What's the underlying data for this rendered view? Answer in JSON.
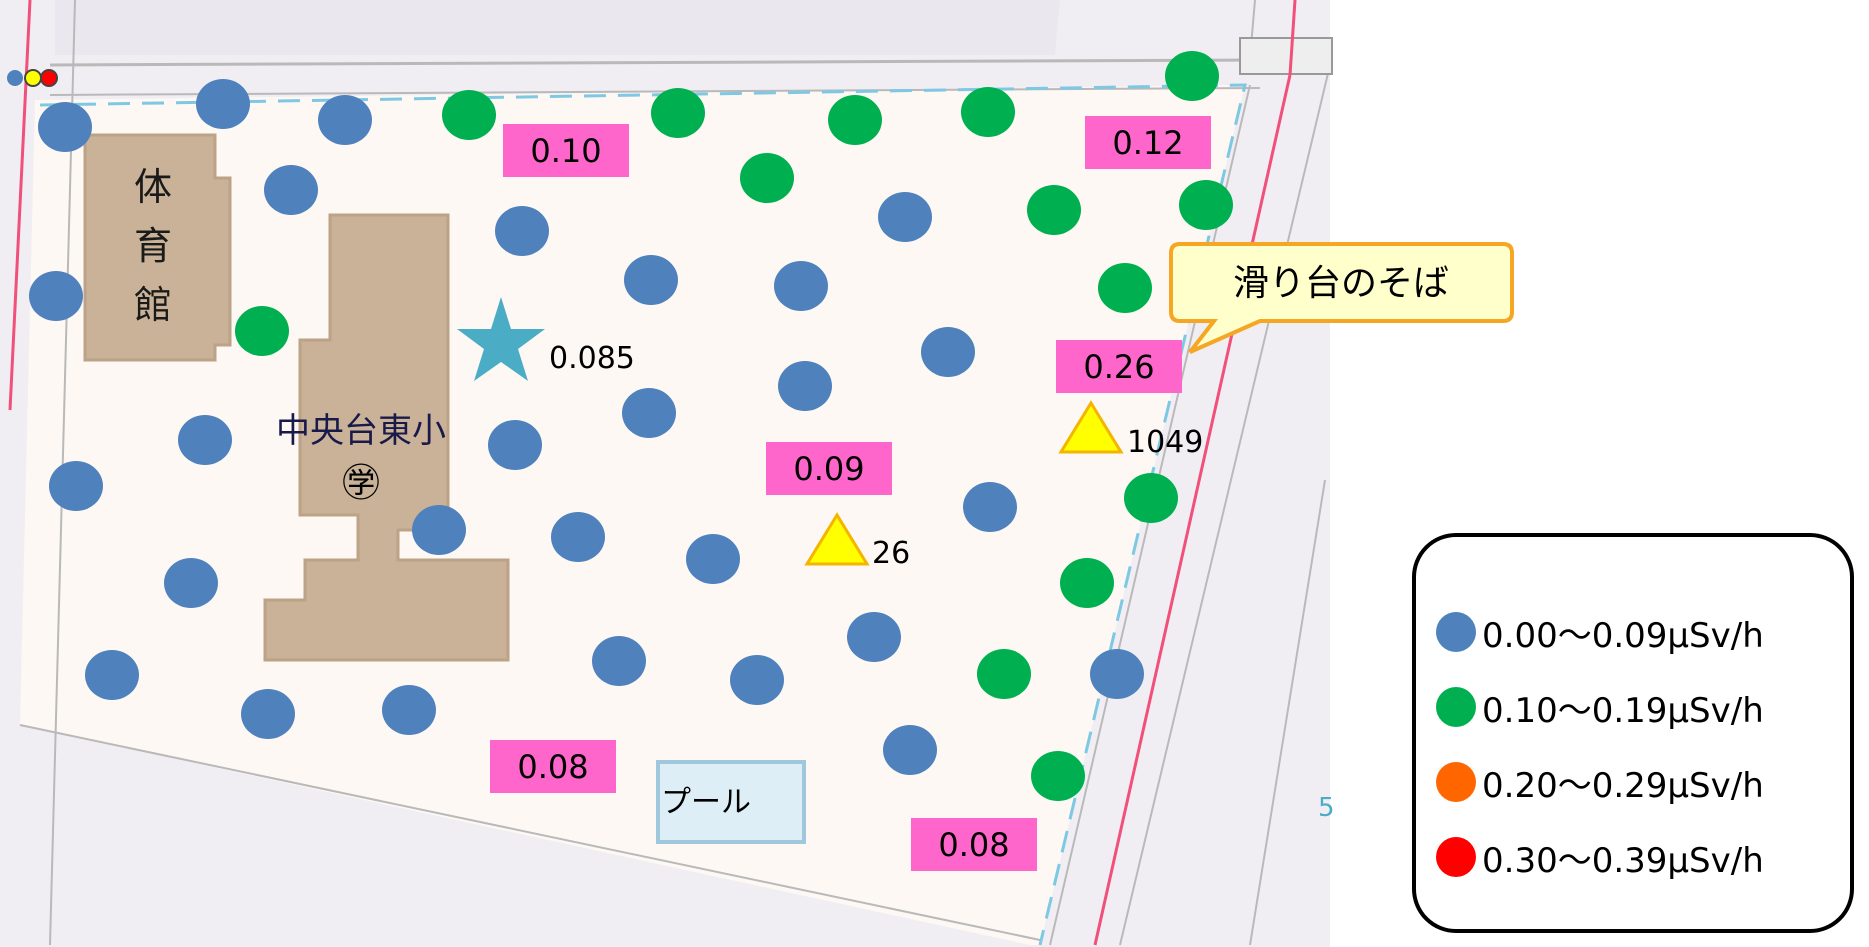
{
  "map": {
    "building_labels": {
      "gym": [
        "体",
        "育",
        "館"
      ],
      "school": "中央台東小",
      "school_symbol": "㊫",
      "pool": "プール"
    },
    "colors": {
      "background": "#ffffff",
      "campus": "#fdf8f3",
      "road": "#f1eef3",
      "building": "#c9b298",
      "measurement_box": "#ff66cc",
      "boundary": "#7ec8e3",
      "red_line": "#f0507a",
      "pool_fill": "#ddeef6",
      "pool_border": "#9fc8dc",
      "star": "#4bacc6",
      "triangle_fill": "#ffff00",
      "triangle_stroke": "#f4b400",
      "callout_fill": "#ffffcc",
      "callout_border": "#f5a623"
    },
    "measurements": [
      "0.10",
      "0.12",
      "0.26",
      "0.09",
      "0.08",
      "0.08"
    ],
    "star_value": "0.085",
    "triangle_values": [
      "1049",
      "26"
    ],
    "callout": "滑り台のそば",
    "edge_number": "5"
  },
  "legend": {
    "items": [
      {
        "label": "0.00〜0.09μSv/h",
        "color": "#4f81bd"
      },
      {
        "label": "0.10〜0.19μSv/h",
        "color": "#00b050"
      },
      {
        "label": "0.20〜0.29μSv/h",
        "color": "#ff6600"
      },
      {
        "label": "0.30〜0.39μSv/h",
        "color": "#ff0000"
      }
    ]
  }
}
